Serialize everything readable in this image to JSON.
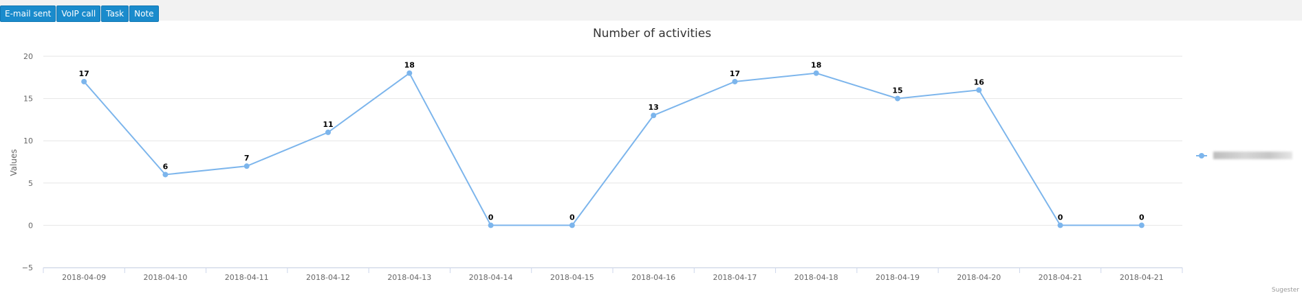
{
  "toolbar": {
    "buttons": [
      "E-mail sent",
      "VoIP call",
      "Task",
      "Note"
    ]
  },
  "colors": {
    "series": "#7cb5ec",
    "button": "#1a8bcc"
  },
  "chart_data": {
    "type": "line",
    "title": "Number of activities",
    "xlabel": "",
    "ylabel": "Values",
    "ylim": [
      -5,
      20
    ],
    "yticks": [
      -5,
      0,
      5,
      10,
      15,
      20
    ],
    "grid": true,
    "legend_position": "right",
    "categories": [
      "2018-04-09",
      "2018-04-10",
      "2018-04-11",
      "2018-04-12",
      "2018-04-13",
      "2018-04-14",
      "2018-04-15",
      "2018-04-16",
      "2018-04-17",
      "2018-04-18",
      "2018-04-19",
      "2018-04-20",
      "2018-04-21",
      "2018-04-21"
    ],
    "series": [
      {
        "values": [
          17,
          6,
          7,
          11,
          18,
          0,
          0,
          13,
          17,
          18,
          15,
          16,
          0,
          0
        ]
      }
    ]
  },
  "footer": {
    "credit": "Sugester"
  }
}
